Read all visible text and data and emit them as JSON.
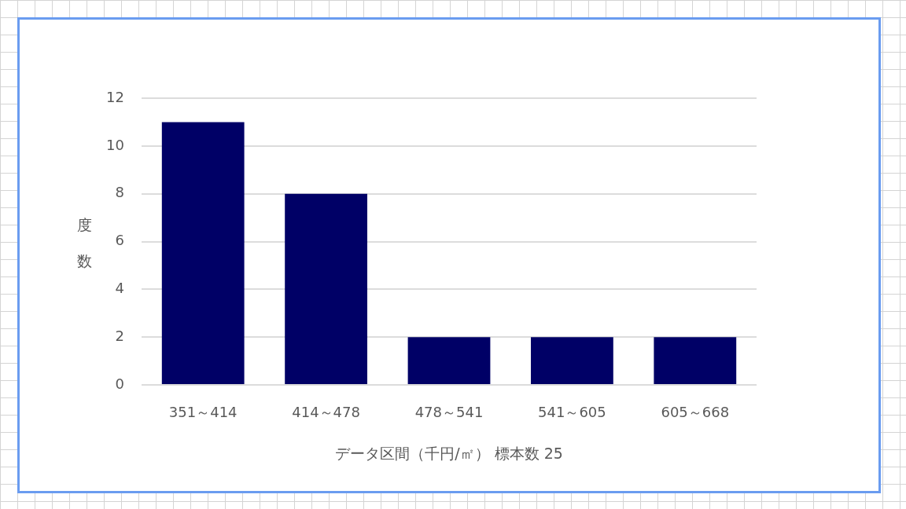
{
  "chart_data": {
    "type": "bar",
    "xlabel": "データ区間（千円/㎡） 標本数 25",
    "ylabel": "度数",
    "categories": [
      "351～414",
      "414～478",
      "478～541",
      "541～605",
      "605～668"
    ],
    "values": [
      11,
      8,
      2,
      2,
      2
    ],
    "color": "#000066",
    "ylim": [
      0,
      12
    ],
    "yticks": [
      0,
      2,
      4,
      6,
      8,
      10,
      12
    ],
    "grid": "y"
  }
}
